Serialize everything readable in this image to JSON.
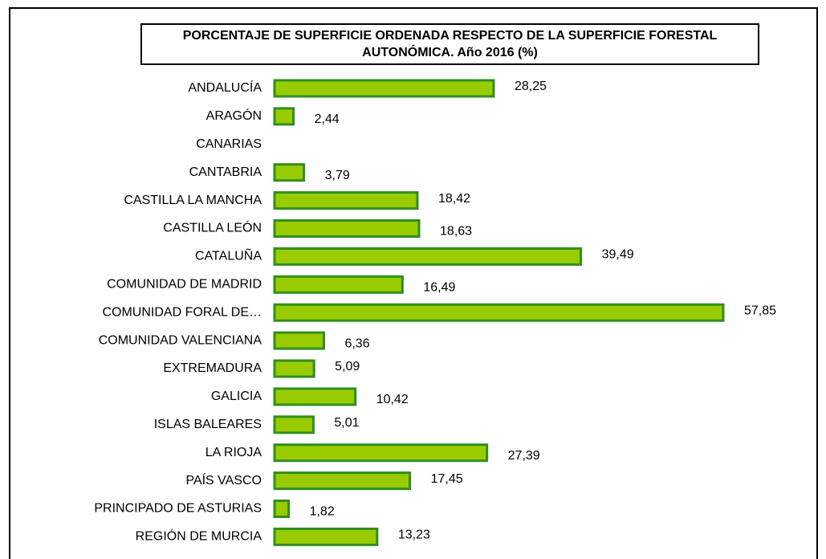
{
  "chart_data": {
    "type": "bar",
    "orientation": "horizontal",
    "title": "PORCENTAJE DE SUPERFICIE ORDENADA RESPECTO DE LA SUPERFICIE FORESTAL AUTONÓMICA. Año 2016 (%)",
    "categories": [
      "ANDALUCÍA",
      "ARAGÓN",
      "CANARIAS",
      "CANTABRIA",
      "CASTILLA LA MANCHA",
      "CASTILLA LEÓN",
      "CATALUÑA",
      "COMUNIDAD DE MADRID",
      "COMUNIDAD FORAL DE…",
      "COMUNIDAD VALENCIANA",
      "EXTREMADURA",
      "GALICIA",
      "ISLAS BALEARES",
      "LA RIOJA",
      "PAÍS VASCO",
      "PRINCIPADO DE ASTURIAS",
      "REGIÓN DE MURCIA"
    ],
    "values": [
      28.25,
      2.44,
      null,
      3.79,
      18.42,
      18.63,
      39.49,
      16.49,
      57.85,
      6.36,
      5.09,
      10.42,
      5.01,
      27.39,
      17.45,
      1.82,
      13.23
    ],
    "value_labels": [
      "28,25",
      "2,44",
      null,
      "3,79",
      "18,42",
      "18,63",
      "39,49",
      "16,49",
      "57,85",
      "6,36",
      "5,09",
      "10,42",
      "5,01",
      "27,39",
      "17,45",
      "1,82",
      "13,23"
    ],
    "color": "#99cc00",
    "edge_color": "#2f8f1f"
  }
}
